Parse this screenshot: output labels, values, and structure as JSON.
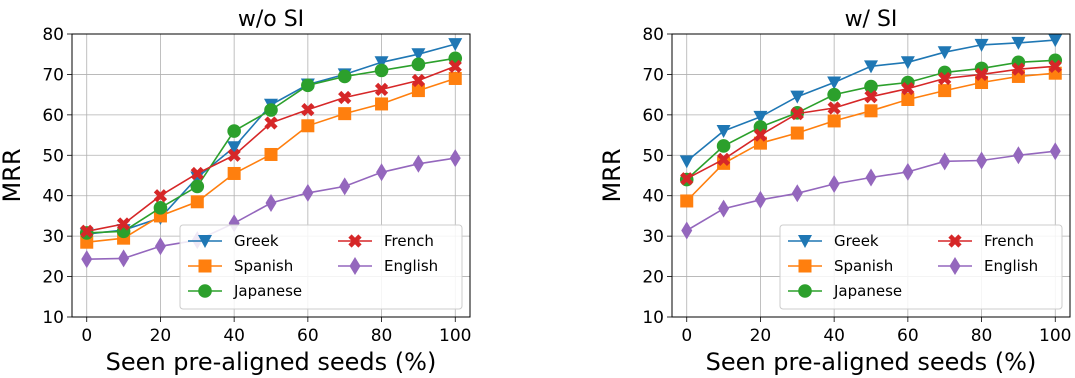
{
  "colors": {
    "Greek": "#1f77b4",
    "Spanish": "#ff7f0e",
    "Japanese": "#2ca02c",
    "French": "#d62728",
    "English": "#9467bd"
  },
  "markers": {
    "Greek": "triangle-down",
    "Spanish": "square",
    "Japanese": "circle",
    "French": "x",
    "English": "diamond"
  },
  "chart_data": [
    {
      "type": "line",
      "title": "w/o SI",
      "xlabel": "Seen pre-aligned seeds (%)",
      "ylabel": "MRR",
      "xlim": [
        -4,
        104
      ],
      "ylim": [
        10,
        80
      ],
      "xticks": [
        0,
        20,
        40,
        60,
        80,
        100
      ],
      "yticks": [
        10,
        20,
        30,
        40,
        50,
        60,
        70,
        80
      ],
      "grid": true,
      "legend": {
        "placement": "lower-right",
        "columns": 2,
        "order": [
          "Greek",
          "French",
          "Spanish",
          "English",
          "Japanese"
        ]
      },
      "x": [
        0,
        10,
        20,
        30,
        40,
        50,
        60,
        70,
        80,
        90,
        100
      ],
      "series": [
        {
          "name": "Greek",
          "values": [
            30.5,
            31.5,
            34.5,
            44.5,
            52,
            62.5,
            67.5,
            70,
            73,
            75,
            77.5
          ]
        },
        {
          "name": "Spanish",
          "values": [
            28.5,
            29.5,
            35,
            38.5,
            45.5,
            50.2,
            57.3,
            60.3,
            62.7,
            66,
            69
          ]
        },
        {
          "name": "Japanese",
          "values": [
            30.8,
            31.2,
            37,
            42.3,
            56,
            61.2,
            67.3,
            69.5,
            71,
            72.5,
            74
          ]
        },
        {
          "name": "French",
          "values": [
            31.2,
            33,
            40,
            45.5,
            50,
            58,
            61.3,
            64.3,
            66.3,
            68.5,
            72
          ]
        },
        {
          "name": "English",
          "values": [
            24.3,
            24.5,
            27.5,
            29,
            33.2,
            38.2,
            40.7,
            42.3,
            45.8,
            47.9,
            49.3
          ]
        }
      ]
    },
    {
      "type": "line",
      "title": "w/ SI",
      "xlabel": "Seen pre-aligned seeds (%)",
      "ylabel": "MRR",
      "xlim": [
        -4,
        104
      ],
      "ylim": [
        10,
        80
      ],
      "xticks": [
        0,
        20,
        40,
        60,
        80,
        100
      ],
      "yticks": [
        10,
        20,
        30,
        40,
        50,
        60,
        70,
        80
      ],
      "grid": true,
      "legend": {
        "placement": "lower-right",
        "columns": 2,
        "order": [
          "Greek",
          "French",
          "Spanish",
          "English",
          "Japanese"
        ]
      },
      "x": [
        0,
        10,
        20,
        30,
        40,
        50,
        60,
        70,
        80,
        90,
        100
      ],
      "series": [
        {
          "name": "Greek",
          "values": [
            48.5,
            56,
            59.5,
            64.5,
            68,
            72,
            73,
            75.5,
            77.3,
            77.8,
            78.5
          ]
        },
        {
          "name": "Spanish",
          "values": [
            38.7,
            48,
            53,
            55.5,
            58.5,
            61,
            63.8,
            66,
            68,
            69.5,
            70.3
          ]
        },
        {
          "name": "Japanese",
          "values": [
            44,
            52.3,
            57,
            60.5,
            65,
            67,
            68,
            70.5,
            71.5,
            73,
            73.5
          ]
        },
        {
          "name": "French",
          "values": [
            44.2,
            49,
            55,
            60.3,
            61.7,
            64.5,
            66.5,
            69,
            70,
            71.3,
            72
          ]
        },
        {
          "name": "English",
          "values": [
            31.4,
            36.8,
            39,
            40.6,
            42.9,
            44.5,
            45.9,
            48.5,
            48.7,
            50,
            51
          ]
        }
      ]
    }
  ]
}
